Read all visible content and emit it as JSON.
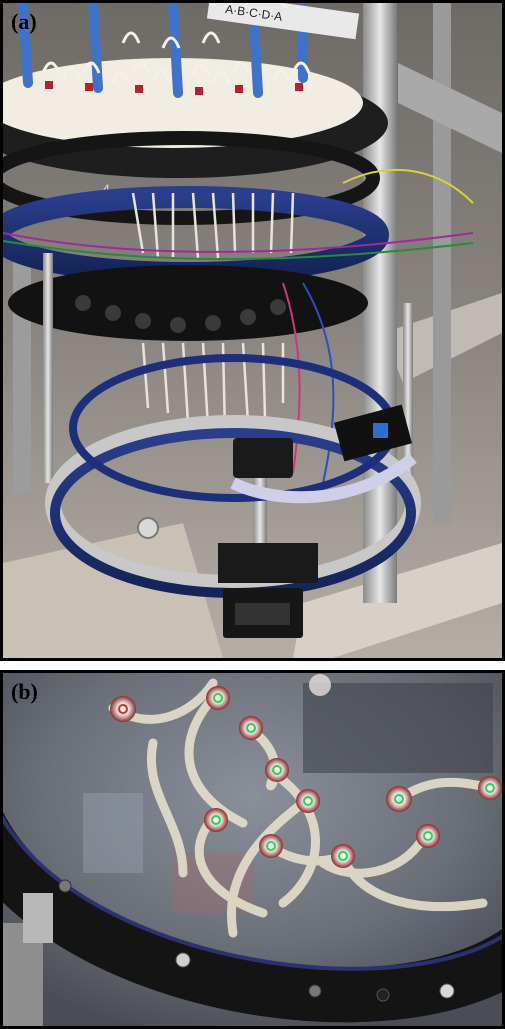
{
  "figure": {
    "panels": [
      {
        "label": "(a)"
      },
      {
        "label": "(b)"
      }
    ],
    "panel_a_tube_label": "A·B·C·D·A",
    "panel_a_ring_number": "4"
  }
}
